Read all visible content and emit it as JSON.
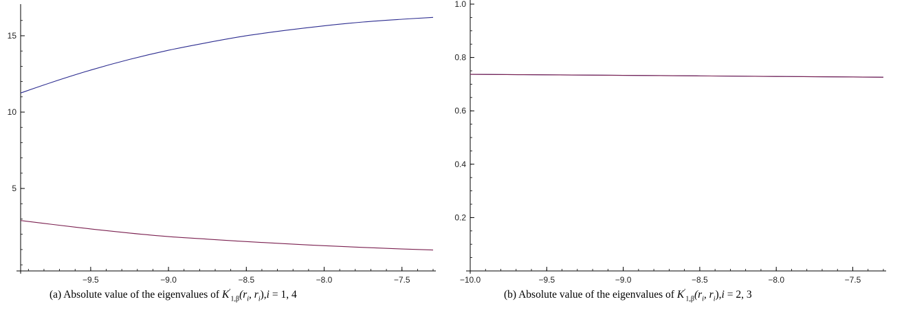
{
  "chart_data": [
    {
      "type": "line",
      "caption": "(a) Absolute value of the eigenvalues of K′1,β(ri, ri),i = 1, 4",
      "xlim": [
        -9.95,
        -7.3
      ],
      "ylim": [
        -0.4,
        16.8
      ],
      "x_ticks": [
        -9.5,
        -9.0,
        -8.5,
        -8.0,
        -7.5
      ],
      "x_tick_labels": [
        "−9.5",
        "−9.0",
        "−8.5",
        "−8.0",
        "−7.5"
      ],
      "y_ticks": [
        5,
        10,
        15
      ],
      "y_tick_labels": [
        "5",
        "10",
        "15"
      ],
      "grid": false,
      "series": [
        {
          "color": "#2b2b8f",
          "x": [
            -9.95,
            -9.75,
            -9.5,
            -9.25,
            -9.0,
            -8.75,
            -8.5,
            -8.25,
            -8.0,
            -7.75,
            -7.5,
            -7.3
          ],
          "y": [
            11.25,
            11.95,
            12.75,
            13.45,
            14.05,
            14.55,
            15.0,
            15.35,
            15.65,
            15.9,
            16.08,
            16.2
          ]
        },
        {
          "color": "#7a1f4f",
          "x": [
            -9.95,
            -9.75,
            -9.5,
            -9.25,
            -9.0,
            -8.75,
            -8.5,
            -8.25,
            -8.0,
            -7.75,
            -7.5,
            -7.3
          ],
          "y": [
            2.9,
            2.65,
            2.35,
            2.08,
            1.85,
            1.68,
            1.52,
            1.38,
            1.25,
            1.14,
            1.04,
            0.97
          ]
        }
      ]
    },
    {
      "type": "line",
      "caption": "(b) Absolute value of the eigenvalues of K′1,β(ri, ri),i = 2, 3",
      "xlim": [
        -10.0,
        -7.3
      ],
      "ylim": [
        0.0,
        1.0
      ],
      "x_ticks": [
        -10.0,
        -9.5,
        -9.0,
        -8.5,
        -8.0,
        -7.5
      ],
      "x_tick_labels": [
        "−10.0",
        "−9.5",
        "−9.0",
        "−8.5",
        "−8.0",
        "−7.5"
      ],
      "y_ticks": [
        0.2,
        0.4,
        0.6,
        0.8,
        1.0
      ],
      "y_tick_labels": [
        "0.2",
        "0.4",
        "0.6",
        "0.8",
        "1.0"
      ],
      "grid": false,
      "series": [
        {
          "color": "#2b2b8f",
          "x": [
            -10.0,
            -9.5,
            -9.0,
            -8.5,
            -8.0,
            -7.5,
            -7.3
          ],
          "y": [
            0.737,
            0.735,
            0.733,
            0.731,
            0.729,
            0.727,
            0.726
          ]
        },
        {
          "color": "#7a1f4f",
          "x": [
            -10.0,
            -9.5,
            -9.0,
            -8.5,
            -8.0,
            -7.5,
            -7.3
          ],
          "y": [
            0.737,
            0.735,
            0.733,
            0.731,
            0.729,
            0.727,
            0.726
          ]
        }
      ]
    }
  ],
  "captions": {
    "a": {
      "prefix": "(a) Absolute value of the eigenvalues of ",
      "K": "K",
      "prime": "′",
      "sub": "1,β",
      "args": "(r",
      "ri1": "i",
      "mid": ", r",
      "ri2": "i",
      "close": ")",
      "suffix_i": "i",
      "suffix": " = 1, 4"
    },
    "b": {
      "prefix": "(b) Absolute value of the eigenvalues of ",
      "K": "K",
      "prime": "′",
      "sub": "1,β",
      "args": "(r",
      "ri1": "i",
      "mid": ", r",
      "ri2": "i",
      "close": ")",
      "suffix_i": "i",
      "suffix": " = 2, 3"
    }
  }
}
